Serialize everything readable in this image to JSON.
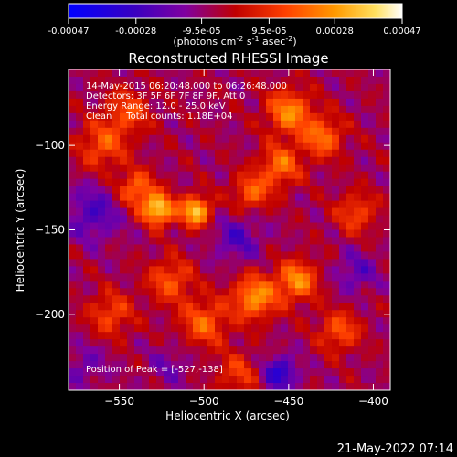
{
  "chart_data": {
    "type": "heatmap",
    "title": "Reconstructed RHESSI Image",
    "xlabel": "Heliocentric X (arcsec)",
    "ylabel": "Heliocentric Y (arcsec)",
    "xlim": [
      -580,
      -390
    ],
    "ylim": [
      -245,
      -55
    ],
    "xticks": [
      -550,
      -500,
      -450,
      -400
    ],
    "yticks": [
      -100,
      -150,
      -200
    ],
    "colorbar": {
      "min": -0.00047,
      "max": 0.00047,
      "tick_values": [
        -0.00047,
        -0.00028,
        -9.5e-05,
        9.5e-05,
        0.00028,
        0.00047
      ],
      "tick_labels": [
        "-0.00047",
        "-0.00028",
        "-9.5e-05",
        "9.5e-05",
        "0.00028",
        "0.00047"
      ],
      "unit_text": "(photons cm",
      "unit_exp1": "-2",
      "unit_mid": " s",
      "unit_exp2": "-1",
      "unit_mid2": " asec",
      "unit_exp3": "-2",
      "unit_end": ")"
    },
    "annotations": [
      "14-May-2015 06:20:48.000 to 06:26:48.000",
      "Detectors: 3F 5F 6F 7F 8F 9F, Att 0",
      "Energy Range: 12.0 - 25.0 keV",
      "Clean     Total counts: 1.18E+04"
    ],
    "peak_text": "Position of Peak = [-527,-138]",
    "peak": [
      -527,
      -138
    ],
    "sources": [
      {
        "x": -527,
        "y": -138,
        "r": 9,
        "amp": 1.0
      },
      {
        "x": -505,
        "y": -139,
        "r": 9,
        "amp": 0.95
      },
      {
        "x": -540,
        "y": -126,
        "r": 11,
        "amp": 0.6
      },
      {
        "x": -472,
        "y": -128,
        "r": 11,
        "amp": 0.55
      },
      {
        "x": -450,
        "y": -80,
        "r": 13,
        "amp": 0.7
      },
      {
        "x": -430,
        "y": -95,
        "r": 12,
        "amp": 0.6
      },
      {
        "x": -455,
        "y": -112,
        "r": 12,
        "amp": 0.6
      },
      {
        "x": -560,
        "y": -100,
        "r": 14,
        "amp": 0.5
      },
      {
        "x": -545,
        "y": -80,
        "r": 13,
        "amp": 0.45
      },
      {
        "x": -470,
        "y": -190,
        "r": 13,
        "amp": 0.75
      },
      {
        "x": -445,
        "y": -180,
        "r": 12,
        "amp": 0.7
      },
      {
        "x": -500,
        "y": -205,
        "r": 14,
        "amp": 0.55
      },
      {
        "x": -520,
        "y": -180,
        "r": 13,
        "amp": 0.5
      },
      {
        "x": -555,
        "y": -200,
        "r": 13,
        "amp": 0.45
      },
      {
        "x": -420,
        "y": -210,
        "r": 12,
        "amp": 0.5
      },
      {
        "x": -410,
        "y": -140,
        "r": 12,
        "amp": 0.45
      },
      {
        "x": -480,
        "y": -235,
        "r": 12,
        "amp": 0.4
      }
    ],
    "holes": [
      {
        "x": -565,
        "y": -140,
        "r": 16,
        "amp": 0.55
      },
      {
        "x": -480,
        "y": -155,
        "r": 14,
        "amp": 0.5
      },
      {
        "x": -455,
        "y": -235,
        "r": 10,
        "amp": 0.8
      },
      {
        "x": -410,
        "y": -175,
        "r": 12,
        "amp": 0.45
      },
      {
        "x": -570,
        "y": -230,
        "r": 12,
        "amp": 0.35
      },
      {
        "x": -520,
        "y": -230,
        "r": 12,
        "amp": 0.3
      }
    ]
  },
  "footer": {
    "timestamp": "21-May-2022 07:14"
  }
}
